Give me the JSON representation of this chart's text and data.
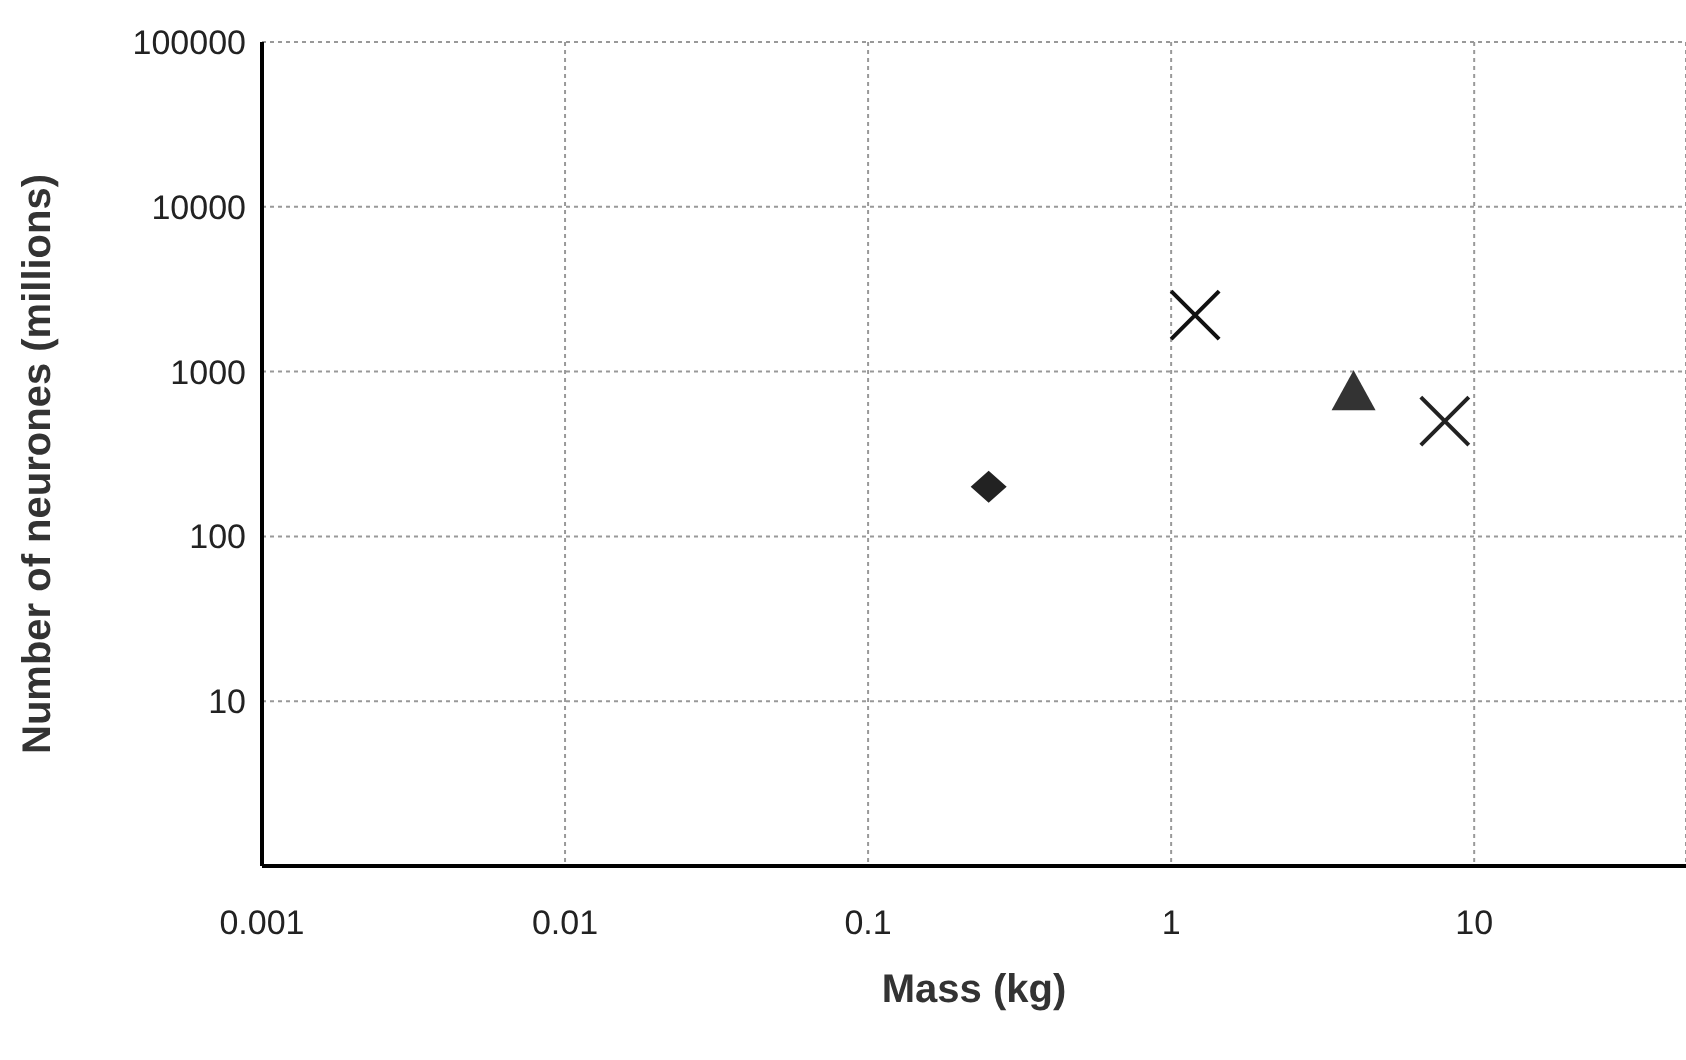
{
  "chart_data": {
    "type": "scatter",
    "xlabel": "Mass (kg)",
    "ylabel": "Number of neurones (millions)",
    "log": "xy",
    "grid": true,
    "legend": false,
    "xlim": [
      0.001,
      50
    ],
    "xticks": [
      0.001,
      0.01,
      0.1,
      1,
      10
    ],
    "ylim": [
      1,
      100000
    ],
    "yticks": [
      10,
      100,
      1000,
      10000,
      100000
    ],
    "series": [
      {
        "color": "#222222",
        "marker": "diamond",
        "x": [
          0.25
        ],
        "values": [
          200
        ]
      },
      {
        "color": "#111111",
        "marker": "cross",
        "x": [
          1.2
        ],
        "values": [
          2200
        ]
      },
      {
        "color": "#333333",
        "marker": "triangle",
        "x": [
          4
        ],
        "values": [
          750
        ]
      },
      {
        "color": "#222222",
        "marker": "cross",
        "x": [
          8
        ],
        "values": [
          500
        ]
      }
    ]
  }
}
